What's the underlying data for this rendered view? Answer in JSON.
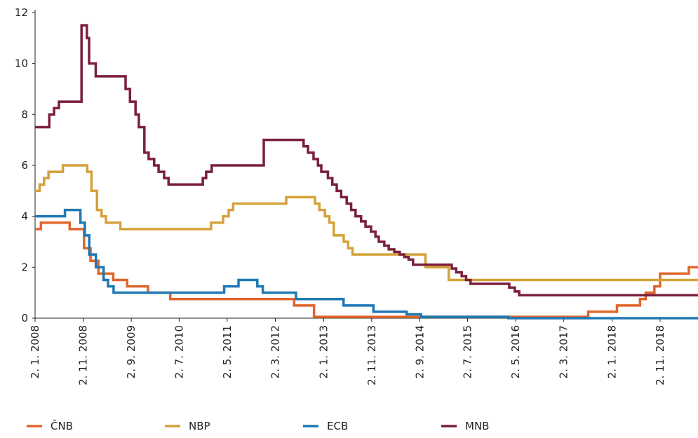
{
  "chart_data": {
    "type": "step",
    "xlim": [
      "2008-01-02",
      "2019-06-30"
    ],
    "xticks": [
      {
        "value": "2008-01-02",
        "label": "2. 1. 2008"
      },
      {
        "value": "2008-11-02",
        "label": "2. 11. 2008"
      },
      {
        "value": "2009-09-02",
        "label": "2. 9. 2009"
      },
      {
        "value": "2010-07-02",
        "label": "2. 7. 2010"
      },
      {
        "value": "2011-05-02",
        "label": "2. 5. 2011"
      },
      {
        "value": "2012-03-02",
        "label": "2. 3. 2012"
      },
      {
        "value": "2013-01-02",
        "label": "2. 1. 2013"
      },
      {
        "value": "2013-11-02",
        "label": "2. 11. 2013"
      },
      {
        "value": "2014-09-02",
        "label": "2. 9. 2014"
      },
      {
        "value": "2015-07-02",
        "label": "2. 7. 2015"
      },
      {
        "value": "2016-05-02",
        "label": "2. 5. 2016"
      },
      {
        "value": "2017-03-02",
        "label": "2. 3. 2017"
      },
      {
        "value": "2018-01-02",
        "label": "2. 1. 2018"
      },
      {
        "value": "2018-11-02",
        "label": "2. 11. 2018"
      }
    ],
    "ylim": [
      0,
      12
    ],
    "yticks": [
      0,
      2,
      4,
      6,
      8,
      10,
      12
    ],
    "series": [
      {
        "name": "ČNB",
        "color": "#e0662a",
        "x": [
          "2008-01-02",
          "2008-02-08",
          "2008-08-08",
          "2008-11-07",
          "2008-12-18",
          "2009-02-06",
          "2009-05-11",
          "2009-08-07",
          "2009-12-17",
          "2010-05-07",
          "2012-06-29",
          "2012-11-02",
          "2017-08-04",
          "2018-02-02",
          "2018-06-28",
          "2018-08-03",
          "2018-09-27",
          "2018-11-02",
          "2019-05-03"
        ],
        "values": [
          3.5,
          3.75,
          3.5,
          2.75,
          2.25,
          1.75,
          1.5,
          1.25,
          1.0,
          0.75,
          0.5,
          0.05,
          0.25,
          0.5,
          0.75,
          1.0,
          1.25,
          1.75,
          2.0
        ]
      },
      {
        "name": "NBP",
        "color": "#d4a23a",
        "x": [
          "2008-01-02",
          "2008-01-31",
          "2008-02-28",
          "2008-03-27",
          "2008-06-26",
          "2008-11-27",
          "2008-12-24",
          "2009-01-28",
          "2009-02-26",
          "2009-03-26",
          "2009-06-25",
          "2011-01-20",
          "2011-04-06",
          "2011-05-12",
          "2011-06-09",
          "2012-05-10",
          "2012-11-08",
          "2012-12-06",
          "2013-01-10",
          "2013-02-07",
          "2013-03-07",
          "2013-05-09",
          "2013-06-06",
          "2013-07-04",
          "2014-10-09",
          "2015-03-05"
        ],
        "values": [
          5.0,
          5.25,
          5.5,
          5.75,
          6.0,
          5.75,
          5.0,
          4.25,
          4.0,
          3.75,
          3.5,
          3.75,
          4.0,
          4.25,
          4.5,
          4.75,
          4.5,
          4.25,
          4.0,
          3.75,
          3.25,
          3.0,
          2.75,
          2.5,
          2.0,
          1.5
        ]
      },
      {
        "name": "ECB",
        "color": "#1f78b4",
        "x": [
          "2008-01-02",
          "2008-07-09",
          "2008-10-15",
          "2008-11-12",
          "2008-12-10",
          "2009-01-21",
          "2009-03-11",
          "2009-04-08",
          "2009-05-13",
          "2011-04-13",
          "2011-07-13",
          "2011-11-09",
          "2011-12-14",
          "2012-07-11",
          "2013-05-08",
          "2013-11-13",
          "2014-06-11",
          "2014-09-10",
          "2016-03-16"
        ],
        "values": [
          4.0,
          4.25,
          3.75,
          3.25,
          2.5,
          2.0,
          1.5,
          1.25,
          1.0,
          1.25,
          1.5,
          1.25,
          1.0,
          0.75,
          0.5,
          0.25,
          0.15,
          0.05,
          0.0
        ]
      },
      {
        "name": "MNB",
        "color": "#7a1f3d",
        "x": [
          "2008-01-02",
          "2008-04-01",
          "2008-05-01",
          "2008-06-01",
          "2008-10-22",
          "2008-11-25",
          "2008-12-09",
          "2009-01-20",
          "2009-07-28",
          "2009-08-25",
          "2009-09-29",
          "2009-10-20",
          "2009-11-24",
          "2009-12-21",
          "2010-01-25",
          "2010-02-22",
          "2010-03-29",
          "2010-04-26",
          "2010-11-29",
          "2010-12-20",
          "2011-01-24",
          "2011-12-20",
          "2012-08-28",
          "2012-09-25",
          "2012-10-30",
          "2012-11-27",
          "2012-12-18",
          "2013-01-29",
          "2013-02-26",
          "2013-03-26",
          "2013-04-23",
          "2013-05-28",
          "2013-06-25",
          "2013-07-23",
          "2013-08-27",
          "2013-09-24",
          "2013-10-29",
          "2013-11-26",
          "2013-12-17",
          "2014-01-21",
          "2014-02-18",
          "2014-03-25",
          "2014-04-29",
          "2014-05-27",
          "2014-06-24",
          "2014-07-22",
          "2015-03-24",
          "2015-04-21",
          "2015-05-26",
          "2015-06-23",
          "2015-07-21",
          "2016-03-22",
          "2016-04-26",
          "2016-05-24"
        ],
        "values": [
          7.5,
          8.0,
          8.25,
          8.5,
          11.5,
          11.0,
          10.0,
          9.5,
          9.0,
          8.5,
          8.0,
          7.5,
          6.5,
          6.25,
          6.0,
          5.75,
          5.5,
          5.25,
          5.5,
          5.75,
          6.0,
          7.0,
          6.75,
          6.5,
          6.25,
          6.0,
          5.75,
          5.5,
          5.25,
          5.0,
          4.75,
          4.5,
          4.25,
          4.0,
          3.8,
          3.6,
          3.4,
          3.2,
          3.0,
          2.85,
          2.7,
          2.6,
          2.5,
          2.4,
          2.3,
          2.1,
          1.95,
          1.8,
          1.65,
          1.5,
          1.35,
          1.2,
          1.05,
          0.9
        ]
      }
    ]
  }
}
